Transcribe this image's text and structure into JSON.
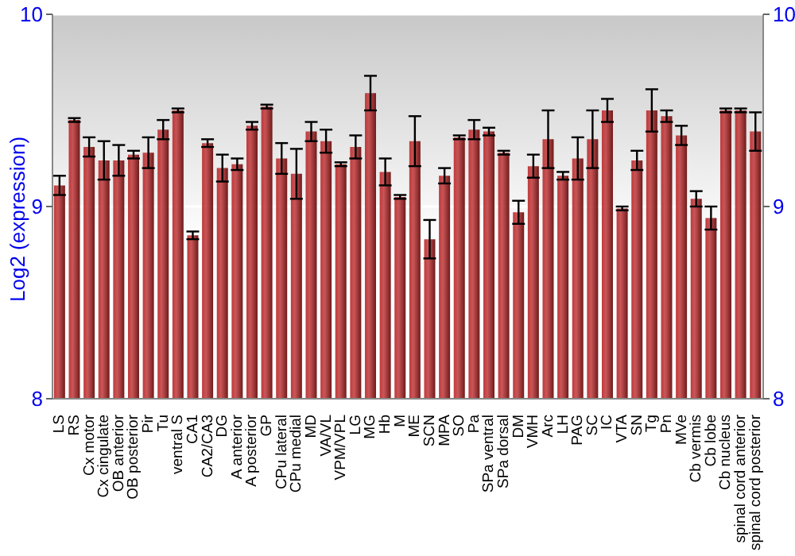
{
  "chart_data": {
    "type": "bar",
    "ylabel": "Log2 (expression)",
    "categories": [
      "LS",
      "RS",
      "Cx motor",
      "Cx cingulate",
      "OB anterior",
      "OB posterior",
      "Pir",
      "Tu",
      "ventral S",
      "CA1",
      "CA2/CA3",
      "DG",
      "A anterior",
      "A posterior",
      "GP",
      "CPu lateral",
      "CPu medial",
      "MD",
      "VA/VL",
      "VPM/VPL",
      "LG",
      "MG",
      "Hb",
      "M",
      "ME",
      "SCN",
      "MPA",
      "SO",
      "Pa",
      "SPa ventral",
      "SPa dorsal",
      "DM",
      "VMH",
      "Arc",
      "LH",
      "PAG",
      "SC",
      "IC",
      "VTA",
      "SN",
      "Tg",
      "Pn",
      "MVe",
      "Cb vermis",
      "Cb lobe",
      "Cb nucleus",
      "spinal cord anterior",
      "spinal cord posterior"
    ],
    "values": [
      9.11,
      9.45,
      9.31,
      9.24,
      9.24,
      9.27,
      9.28,
      9.4,
      9.5,
      8.85,
      9.33,
      9.2,
      9.22,
      9.42,
      9.52,
      9.25,
      9.17,
      9.39,
      9.34,
      9.22,
      9.31,
      9.59,
      9.18,
      9.05,
      9.34,
      8.83,
      9.16,
      9.36,
      9.4,
      9.39,
      9.28,
      8.97,
      9.21,
      9.35,
      9.16,
      9.25,
      9.35,
      9.5,
      8.99,
      9.24,
      9.5,
      9.47,
      9.37,
      9.04,
      8.94,
      9.5,
      9.5,
      9.39
    ],
    "errors": [
      0.05,
      0.01,
      0.05,
      0.1,
      0.08,
      0.02,
      0.08,
      0.05,
      0.01,
      0.02,
      0.02,
      0.07,
      0.03,
      0.02,
      0.01,
      0.08,
      0.13,
      0.05,
      0.06,
      0.01,
      0.06,
      0.09,
      0.07,
      0.01,
      0.13,
      0.1,
      0.04,
      0.01,
      0.05,
      0.02,
      0.01,
      0.06,
      0.06,
      0.15,
      0.02,
      0.11,
      0.15,
      0.06,
      0.01,
      0.05,
      0.11,
      0.03,
      0.05,
      0.04,
      0.06,
      0.01,
      0.01,
      0.1
    ],
    "color": "#c0393b",
    "ylim": [
      8,
      10
    ],
    "yticks": [
      8,
      9,
      10
    ],
    "y2lim": [
      8,
      10
    ],
    "y2ticks": [
      8,
      9,
      10
    ],
    "grid": "y"
  }
}
